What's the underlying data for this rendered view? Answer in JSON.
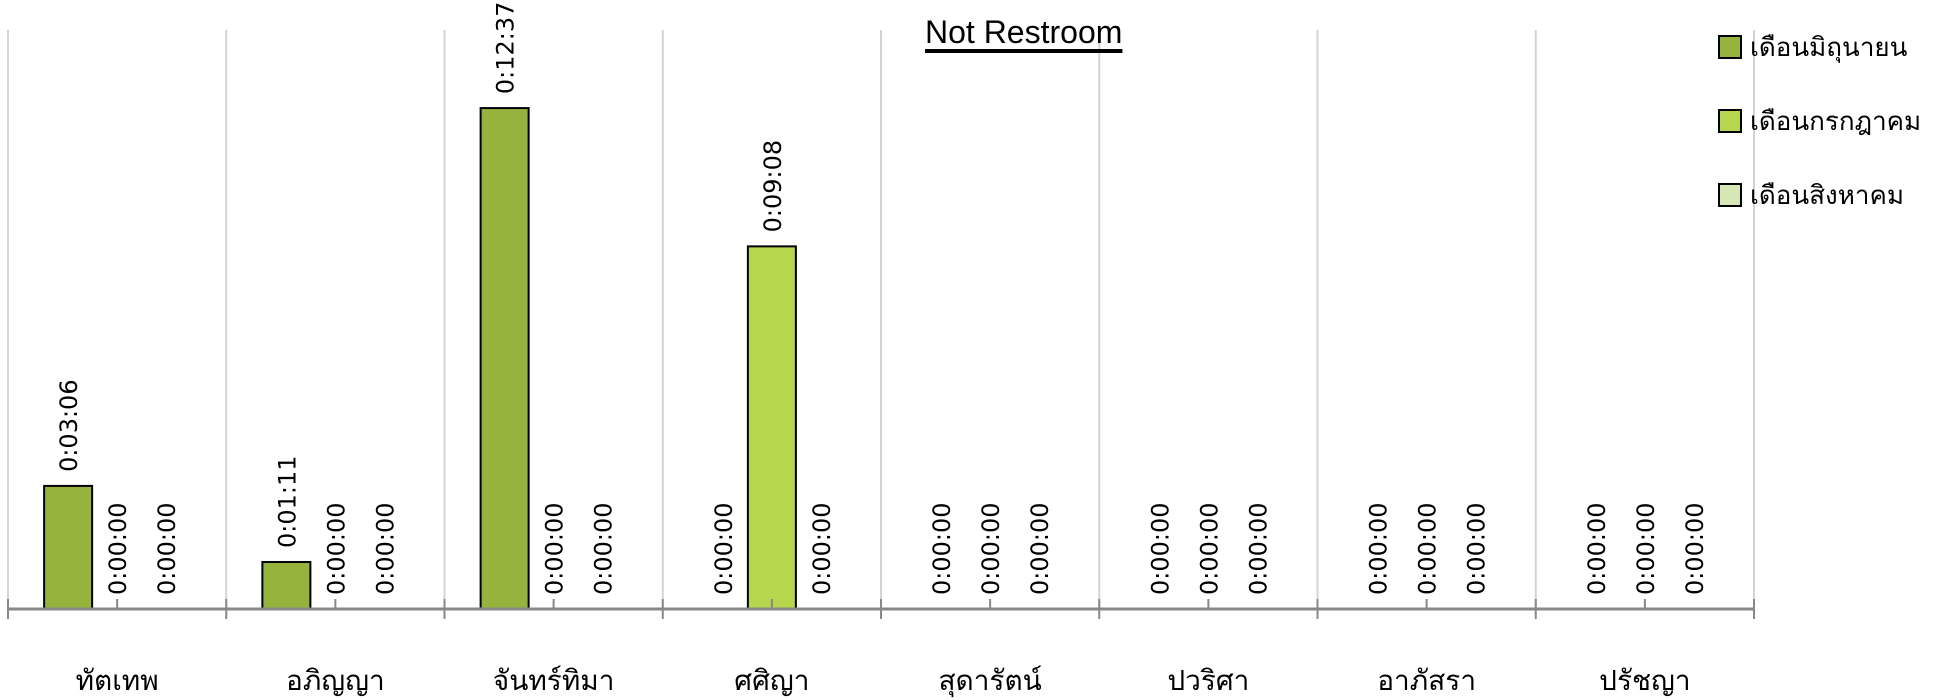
{
  "chart_data": {
    "type": "bar",
    "title": "Not Restroom",
    "categories": [
      "ทัตเทพ",
      "อภิญญา",
      "จันทร์ทิมา",
      "ศศิญา",
      "สุดารัตน์",
      "ปวริศา",
      "อาภัสรา",
      "ปรัชญา"
    ],
    "series": [
      {
        "name": "เดือนมิถุนายน",
        "color": "#96b43d",
        "values": [
          186,
          71,
          757,
          0,
          0,
          0,
          0,
          0
        ],
        "labels": [
          "0:03:06",
          "0:01:11",
          "0:12:37",
          "0:00:00",
          "0:00:00",
          "0:00:00",
          "0:00:00",
          "0:00:00"
        ]
      },
      {
        "name": "เดือนกรกฎาคม",
        "color": "#b6d64e",
        "values": [
          0,
          0,
          0,
          548,
          0,
          0,
          0,
          0
        ],
        "labels": [
          "0:00:00",
          "0:00:00",
          "0:00:00",
          "0:09:08",
          "0:00:00",
          "0:00:00",
          "0:00:00",
          "0:00:00"
        ]
      },
      {
        "name": "เดือนสิงหาคม",
        "color": "#d6e6b4",
        "values": [
          0,
          0,
          0,
          0,
          0,
          0,
          0,
          0
        ],
        "labels": [
          "0:00:00",
          "0:00:00",
          "0:00:00",
          "0:00:00",
          "0:00:00",
          "0:00:00",
          "0:00:00",
          "0:00:00"
        ]
      }
    ],
    "y_unit": "seconds",
    "ylim": [
      0,
      875
    ],
    "grid": "vertical",
    "legend_position": "right"
  }
}
